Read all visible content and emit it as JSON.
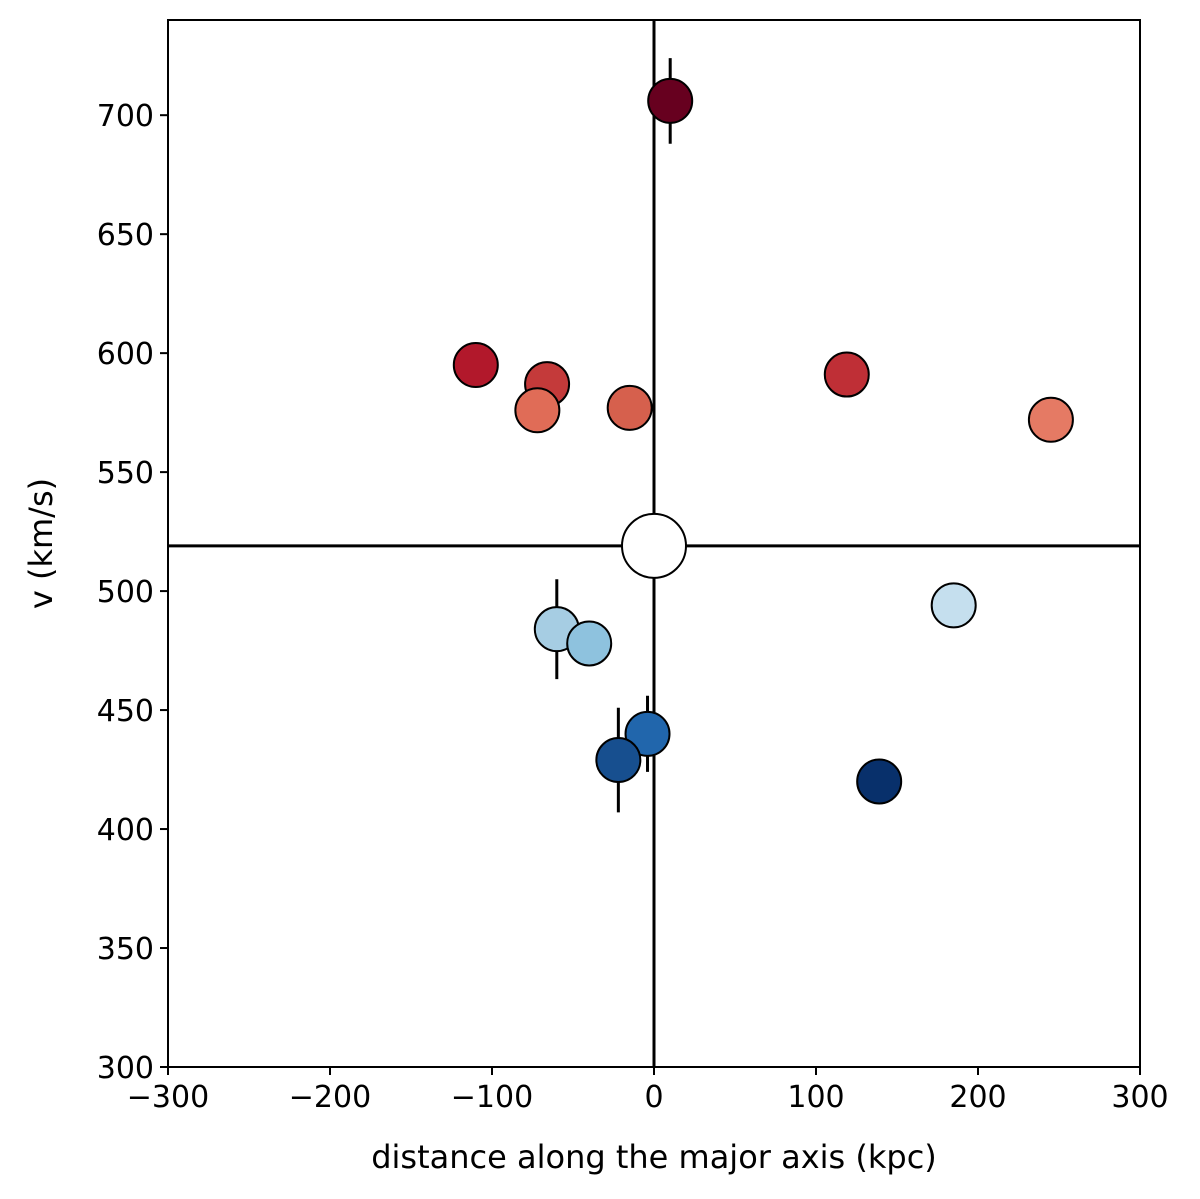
{
  "chart_data": {
    "type": "scatter",
    "title": "",
    "xlabel": "distance along the major axis (kpc)",
    "ylabel": "v (km/s)",
    "xlim": [
      -300,
      300
    ],
    "ylim": [
      300,
      740
    ],
    "xticks": [
      -300,
      -200,
      -100,
      0,
      100,
      200,
      300
    ],
    "yticks": [
      300,
      350,
      400,
      450,
      500,
      550,
      600,
      650,
      700
    ],
    "xtick_labels": [
      "−300",
      "−200",
      "−100",
      "0",
      "100",
      "200",
      "300"
    ],
    "ytick_labels": [
      "300",
      "350",
      "400",
      "450",
      "500",
      "550",
      "600",
      "650",
      "700"
    ],
    "grid": false,
    "reference_lines": {
      "x": 0,
      "y": 519
    },
    "center_point": {
      "x": 0,
      "y": 519,
      "color": "#ffffff"
    },
    "points": [
      {
        "x": 10,
        "y": 706,
        "err": 18,
        "color": "#67001f"
      },
      {
        "x": -110,
        "y": 595,
        "err": 0,
        "color": "#b2182b"
      },
      {
        "x": -66,
        "y": 587,
        "err": 0,
        "color": "#c43a3a"
      },
      {
        "x": -72,
        "y": 576,
        "err": 0,
        "color": "#e06c57"
      },
      {
        "x": -15,
        "y": 577,
        "err": 0,
        "color": "#d6604d"
      },
      {
        "x": 119,
        "y": 591,
        "err": 0,
        "color": "#bf2f36"
      },
      {
        "x": 245,
        "y": 572,
        "err": 0,
        "color": "#e57a64"
      },
      {
        "x": -60,
        "y": 484,
        "err": 21,
        "color": "#a6cde3"
      },
      {
        "x": -40,
        "y": 478,
        "err": 0,
        "color": "#8ec2de"
      },
      {
        "x": 185,
        "y": 494,
        "err": 0,
        "color": "#c5dfee"
      },
      {
        "x": -4,
        "y": 440,
        "err": 16,
        "color": "#2166ac"
      },
      {
        "x": -22,
        "y": 429,
        "err": 22,
        "color": "#174f8f"
      },
      {
        "x": 139,
        "y": 420,
        "err": 0,
        "color": "#08306b"
      }
    ]
  }
}
